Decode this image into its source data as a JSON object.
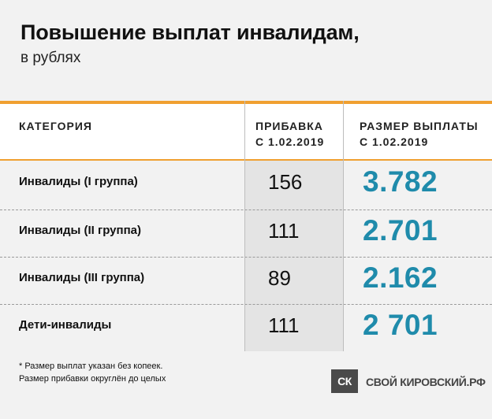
{
  "title": "Повышение выплат инвалидам,",
  "subtitle": "в рублях",
  "table": {
    "headers": {
      "category": "КАТЕГОРИЯ",
      "increase_line1": "ПРИБАВКА",
      "increase_line2": "С 1.02.2019",
      "amount_line1": "РАЗМЕР ВЫПЛАТЫ",
      "amount_line2": "С 1.02.2019"
    },
    "rows": [
      {
        "category": "Инвалиды (I группа)",
        "increase": "156",
        "amount": "3.782"
      },
      {
        "category": "Инвалиды (II группа)",
        "increase": "111",
        "amount": "2.701"
      },
      {
        "category": "Инвалиды (III группа)",
        "increase": "89",
        "amount": "2.162"
      },
      {
        "category": "Дети-инвалиды",
        "increase": "111",
        "amount": "2 701"
      }
    ]
  },
  "footnotes": {
    "line1": "* Размер выплат указан без копеек.",
    "line2": "Размер прибавки округлён до целых"
  },
  "logo": {
    "mark": "СК",
    "text": "СВОЙ КИРОВСКИЙ.РФ"
  },
  "colors": {
    "accent": "#f0a030",
    "amount": "#1f8bab",
    "background": "#f2f2f2"
  }
}
